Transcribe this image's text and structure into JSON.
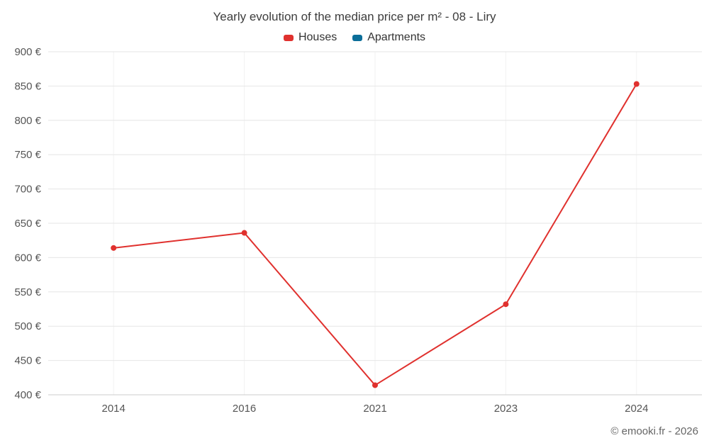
{
  "chart_data": {
    "type": "line",
    "title": "Yearly evolution of the median price per m² - 08 - Liry",
    "categories": [
      "2014",
      "2016",
      "2021",
      "2023",
      "2024"
    ],
    "series": [
      {
        "name": "Houses",
        "color": "#e0312e",
        "values": [
          614,
          636,
          414,
          532,
          853
        ]
      },
      {
        "name": "Apartments",
        "color": "#0b6e99",
        "values": []
      }
    ],
    "xlabel": "",
    "ylabel": "",
    "ylim": [
      400,
      900
    ],
    "ytick_step": 50,
    "ytick_suffix": " €",
    "grid": "horizontal",
    "legend_position": "top"
  },
  "footer": {
    "credit": "© emooki.fr - 2026"
  },
  "colors": {
    "grid": "#e6e6e6",
    "vgrid": "#f2f2f2",
    "axis": "#cccccc",
    "tick_label": "#555555",
    "title": "#3d3d3d"
  }
}
